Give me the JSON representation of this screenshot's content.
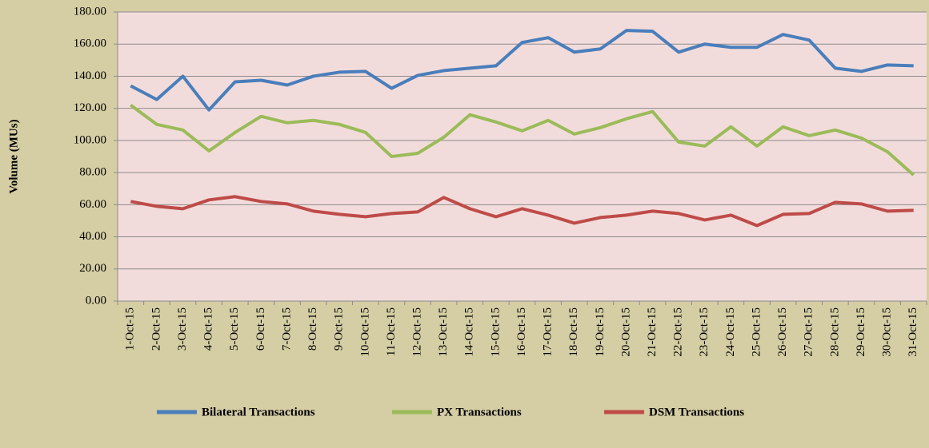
{
  "chart_data": {
    "type": "line",
    "y_label": "Volume (MUs)",
    "categories": [
      "1-Oct-15",
      "2-Oct-15",
      "3-Oct-15",
      "4-Oct-15",
      "5-Oct-15",
      "6-Oct-15",
      "7-Oct-15",
      "8-Oct-15",
      "9-Oct-15",
      "10-Oct-15",
      "11-Oct-15",
      "12-Oct-15",
      "13-Oct-15",
      "14-Oct-15",
      "15-Oct-15",
      "16-Oct-15",
      "17-Oct-15",
      "18-Oct-15",
      "19-Oct-15",
      "20-Oct-15",
      "21-Oct-15",
      "22-Oct-15",
      "23-Oct-15",
      "24-Oct-15",
      "25-Oct-15",
      "26-Oct-15",
      "27-Oct-15",
      "28-Oct-15",
      "29-Oct-15",
      "30-Oct-15",
      "31-Oct-15"
    ],
    "series": [
      {
        "name": "Bilateral Transactions",
        "color": "#4a7ebb",
        "values": [
          134,
          125.5,
          140,
          119,
          136.5,
          137.5,
          134.5,
          140,
          142.5,
          143,
          132.5,
          140.5,
          143.5,
          145,
          146.5,
          161,
          164,
          155,
          157,
          168.5,
          168,
          155,
          160,
          158,
          158,
          166,
          162.5,
          145,
          143,
          147,
          146.5
        ]
      },
      {
        "name": "PX Transactions",
        "color": "#9bbb59",
        "values": [
          122,
          110,
          106.5,
          93.5,
          105,
          115,
          111,
          112.5,
          110,
          105,
          90,
          92,
          102,
          116,
          111.5,
          106,
          112.5,
          104,
          108,
          113.5,
          118,
          99,
          96.5,
          108.5,
          96.5,
          108.5,
          103,
          106.5,
          101.5,
          93,
          78.5
        ]
      },
      {
        "name": "DSM Transactions",
        "color": "#be4b48",
        "values": [
          62,
          59,
          57.5,
          63,
          65,
          62,
          60.5,
          56,
          54,
          52.5,
          54.5,
          55.5,
          64.5,
          57.5,
          52.5,
          57.5,
          53.5,
          48.5,
          52,
          53.5,
          56,
          54.5,
          50.5,
          53.5,
          47,
          54,
          54.5,
          61.5,
          60.5,
          56,
          56.5
        ]
      }
    ],
    "ylim": [
      0,
      180
    ],
    "yticks": [
      {
        "value": 0,
        "label": "0.00"
      },
      {
        "value": 20,
        "label": "20.00"
      },
      {
        "value": 40,
        "label": "40.00"
      },
      {
        "value": 60,
        "label": "60.00"
      },
      {
        "value": 80,
        "label": "80.00"
      },
      {
        "value": 100,
        "label": "100.00"
      },
      {
        "value": 120,
        "label": "120.00"
      },
      {
        "value": 140,
        "label": "140.00"
      },
      {
        "value": 160,
        "label": "160.00"
      },
      {
        "value": 180,
        "label": "180.00"
      }
    ],
    "grid": true,
    "legend": "bottom"
  }
}
